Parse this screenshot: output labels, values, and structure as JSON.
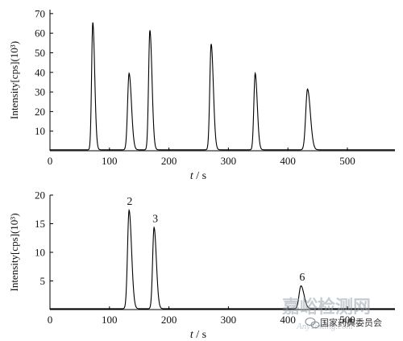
{
  "watermark": {
    "line1": "嘉峪检测网",
    "line2": "AnyTesting.com",
    "caption": "国家药典委员会",
    "icon": "wechat-icon"
  },
  "chart_data": [
    {
      "type": "line",
      "title": "",
      "xlabel_italic": "t",
      "xlabel_unit": " / s",
      "ylabel": "Intensity[cps](10³)",
      "xlim": [
        0,
        580
      ],
      "ylim": [
        0,
        72
      ],
      "xticks": [
        0,
        100,
        200,
        300,
        400,
        500
      ],
      "yticks": [
        10,
        20,
        30,
        40,
        50,
        60,
        70
      ],
      "grid": false,
      "baseline": 0.5,
      "peaks": [
        {
          "t": 72,
          "height": 65,
          "width": 2.0
        },
        {
          "t": 133,
          "height": 39,
          "width": 2.5
        },
        {
          "t": 168,
          "height": 61,
          "width": 2.2
        },
        {
          "t": 271,
          "height": 54,
          "width": 2.3
        },
        {
          "t": 345,
          "height": 39,
          "width": 2.2
        },
        {
          "t": 433,
          "height": 31,
          "width": 3.0
        }
      ],
      "peak_labels": []
    },
    {
      "type": "line",
      "title": "",
      "xlabel_italic": "t",
      "xlabel_unit": " / s",
      "ylabel": "Intensity[cps](10³)",
      "xlim": [
        0,
        580
      ],
      "ylim": [
        0,
        20
      ],
      "xticks": [
        0,
        100,
        200,
        300,
        400,
        500
      ],
      "yticks": [
        5,
        10,
        15,
        20
      ],
      "grid": false,
      "baseline": 0.15,
      "peaks": [
        {
          "t": 133,
          "height": 17.2,
          "width": 2.6
        },
        {
          "t": 175,
          "height": 14.2,
          "width": 2.4
        },
        {
          "t": 422,
          "height": 4.0,
          "width": 3.2
        }
      ],
      "peak_labels": [
        {
          "label": "2",
          "t": 134,
          "value": 18.3
        },
        {
          "label": "3",
          "t": 177,
          "value": 15.3
        },
        {
          "label": "6",
          "t": 424,
          "value": 5.1
        }
      ]
    }
  ]
}
